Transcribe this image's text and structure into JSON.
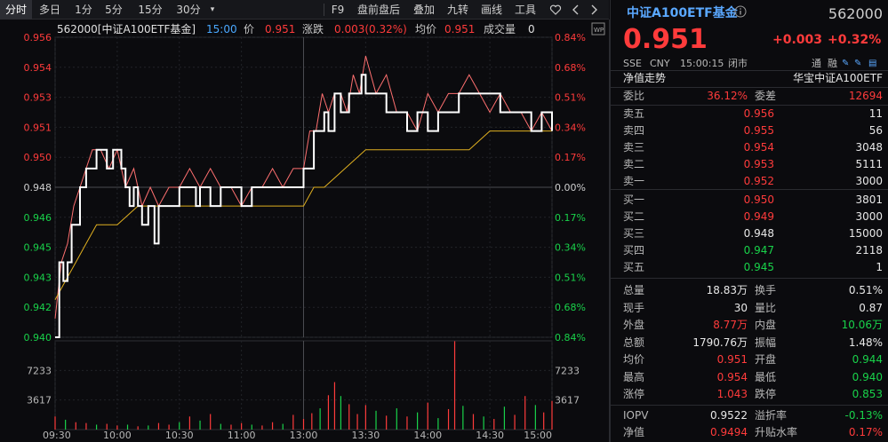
{
  "toolbar": {
    "tabs": [
      "分时",
      "多日",
      "1分",
      "5分",
      "15分",
      "30分"
    ],
    "more": "▾",
    "tools": [
      "F9",
      "盘前盘后",
      "叠加",
      "九转",
      "画线",
      "工具"
    ],
    "fav_icon": "heart-outline-icon",
    "back_icon": "chevron-left-icon",
    "fwd_icon": "chevron-right-icon"
  },
  "info_bar": {
    "code_name": "562000[中证A100ETF基金]",
    "time": "15:00",
    "price_label": "价",
    "price": "0.951",
    "change_label": "涨跌",
    "change": "0.003(0.32%)",
    "avg_label": "均价",
    "avg": "0.951",
    "volume_label": "成交量",
    "volume": "0"
  },
  "colors": {
    "up": "#ff3b3b",
    "down": "#19d24a",
    "price_line": "#ffffff",
    "avg_line": "#e0b020",
    "iopv_line": "#ff7070",
    "accent_blue": "#4a8cff"
  },
  "chart_data": {
    "type": "line",
    "x_ticks": [
      "09:30",
      "10:00",
      "10:30",
      "11:00",
      "13:00",
      "13:30",
      "14:00",
      "14:30",
      "15:00"
    ],
    "y_left_ticks": [
      "0.956",
      "0.954",
      "0.953",
      "0.951",
      "0.950",
      "0.948",
      "0.946",
      "0.945",
      "0.943",
      "0.942",
      "0.940"
    ],
    "y_right_ticks": [
      "0.84%",
      "0.68%",
      "0.51%",
      "0.34%",
      "0.17%",
      "0.00%",
      "0.17%",
      "0.34%",
      "0.51%",
      "0.68%",
      "0.84%"
    ],
    "ylim": [
      0.94,
      0.956
    ],
    "prev_close": 0.948,
    "volume_ticks": [
      "7233",
      "3617"
    ],
    "volume_max": 10850,
    "series": [
      {
        "name": "价",
        "x": [
          0,
          2,
          4,
          6,
          8,
          10,
          12,
          15,
          18,
          20,
          22,
          25,
          28,
          30,
          32,
          34,
          36,
          38,
          40,
          42,
          45,
          48,
          50,
          52,
          55,
          58,
          60,
          62,
          65,
          68,
          70,
          72,
          75,
          80,
          85,
          90,
          95,
          100,
          105,
          110,
          115,
          120,
          122,
          125,
          128,
          130,
          132,
          135,
          138,
          140,
          142,
          145,
          148,
          150,
          155,
          160,
          165,
          170,
          175,
          180,
          185,
          190,
          195,
          200,
          205,
          210,
          215,
          220,
          225,
          230,
          235,
          240
        ],
        "y": [
          0.94,
          0.944,
          0.943,
          0.944,
          0.946,
          0.946,
          0.948,
          0.949,
          0.949,
          0.95,
          0.95,
          0.949,
          0.95,
          0.95,
          0.949,
          0.948,
          0.947,
          0.948,
          0.947,
          0.946,
          0.947,
          0.945,
          0.947,
          0.947,
          0.947,
          0.947,
          0.948,
          0.948,
          0.948,
          0.947,
          0.948,
          0.948,
          0.947,
          0.948,
          0.948,
          0.947,
          0.948,
          0.948,
          0.948,
          0.948,
          0.948,
          0.949,
          0.949,
          0.951,
          0.951,
          0.952,
          0.951,
          0.953,
          0.952,
          0.952,
          0.953,
          0.953,
          0.954,
          0.953,
          0.953,
          0.952,
          0.952,
          0.951,
          0.952,
          0.951,
          0.952,
          0.952,
          0.953,
          0.953,
          0.953,
          0.953,
          0.952,
          0.952,
          0.952,
          0.951,
          0.952,
          0.951
        ]
      },
      {
        "name": "均价",
        "x": [
          0,
          5,
          10,
          15,
          20,
          30,
          40,
          50,
          60,
          70,
          80,
          90,
          100,
          110,
          120,
          125,
          130,
          140,
          150,
          160,
          170,
          180,
          190,
          200,
          210,
          220,
          230,
          240
        ],
        "y": [
          0.942,
          0.943,
          0.944,
          0.945,
          0.946,
          0.946,
          0.947,
          0.947,
          0.947,
          0.947,
          0.947,
          0.947,
          0.947,
          0.947,
          0.947,
          0.948,
          0.948,
          0.949,
          0.95,
          0.95,
          0.95,
          0.95,
          0.95,
          0.95,
          0.951,
          0.951,
          0.951,
          0.951
        ]
      },
      {
        "name": "IOPV",
        "x": [
          0,
          3,
          6,
          9,
          12,
          15,
          18,
          22,
          26,
          30,
          34,
          38,
          42,
          46,
          50,
          55,
          60,
          65,
          70,
          75,
          80,
          85,
          90,
          95,
          100,
          105,
          110,
          115,
          120,
          123,
          126,
          129,
          132,
          135,
          138,
          141,
          144,
          147,
          150,
          155,
          160,
          165,
          170,
          175,
          180,
          185,
          190,
          195,
          200,
          205,
          210,
          215,
          220,
          225,
          230,
          235,
          240
        ],
        "y": [
          0.941,
          0.944,
          0.945,
          0.947,
          0.948,
          0.949,
          0.95,
          0.95,
          0.949,
          0.95,
          0.948,
          0.949,
          0.947,
          0.948,
          0.947,
          0.948,
          0.948,
          0.949,
          0.948,
          0.949,
          0.948,
          0.948,
          0.947,
          0.948,
          0.948,
          0.949,
          0.948,
          0.949,
          0.949,
          0.951,
          0.951,
          0.953,
          0.952,
          0.953,
          0.953,
          0.952,
          0.954,
          0.953,
          0.955,
          0.953,
          0.954,
          0.952,
          0.952,
          0.951,
          0.953,
          0.952,
          0.953,
          0.953,
          0.954,
          0.953,
          0.952,
          0.953,
          0.952,
          0.952,
          0.951,
          0.952,
          0.951
        ]
      }
    ],
    "volume": [
      {
        "x": 0,
        "v": 1600,
        "c": "up"
      },
      {
        "x": 5,
        "v": 1200,
        "c": "down"
      },
      {
        "x": 10,
        "v": 900,
        "c": "up"
      },
      {
        "x": 15,
        "v": 800,
        "c": "up"
      },
      {
        "x": 20,
        "v": 600,
        "c": "down"
      },
      {
        "x": 25,
        "v": 700,
        "c": "up"
      },
      {
        "x": 30,
        "v": 500,
        "c": "up"
      },
      {
        "x": 35,
        "v": 600,
        "c": "down"
      },
      {
        "x": 40,
        "v": 400,
        "c": "up"
      },
      {
        "x": 45,
        "v": 500,
        "c": "down"
      },
      {
        "x": 50,
        "v": 800,
        "c": "up"
      },
      {
        "x": 55,
        "v": 600,
        "c": "up"
      },
      {
        "x": 60,
        "v": 900,
        "c": "down"
      },
      {
        "x": 65,
        "v": 1600,
        "c": "up"
      },
      {
        "x": 70,
        "v": 1100,
        "c": "down"
      },
      {
        "x": 75,
        "v": 1900,
        "c": "up"
      },
      {
        "x": 80,
        "v": 700,
        "c": "down"
      },
      {
        "x": 85,
        "v": 600,
        "c": "up"
      },
      {
        "x": 90,
        "v": 800,
        "c": "up"
      },
      {
        "x": 95,
        "v": 600,
        "c": "down"
      },
      {
        "x": 100,
        "v": 500,
        "c": "up"
      },
      {
        "x": 105,
        "v": 900,
        "c": "up"
      },
      {
        "x": 110,
        "v": 700,
        "c": "down"
      },
      {
        "x": 115,
        "v": 1800,
        "c": "up"
      },
      {
        "x": 120,
        "v": 1300,
        "c": "up"
      },
      {
        "x": 124,
        "v": 2000,
        "c": "up"
      },
      {
        "x": 128,
        "v": 2600,
        "c": "down"
      },
      {
        "x": 132,
        "v": 4200,
        "c": "up"
      },
      {
        "x": 135,
        "v": 5800,
        "c": "up"
      },
      {
        "x": 138,
        "v": 4100,
        "c": "down"
      },
      {
        "x": 142,
        "v": 3100,
        "c": "up"
      },
      {
        "x": 146,
        "v": 1900,
        "c": "up"
      },
      {
        "x": 150,
        "v": 3000,
        "c": "up"
      },
      {
        "x": 155,
        "v": 2300,
        "c": "down"
      },
      {
        "x": 160,
        "v": 1700,
        "c": "up"
      },
      {
        "x": 165,
        "v": 2600,
        "c": "down"
      },
      {
        "x": 170,
        "v": 1600,
        "c": "up"
      },
      {
        "x": 175,
        "v": 2100,
        "c": "down"
      },
      {
        "x": 180,
        "v": 3300,
        "c": "up"
      },
      {
        "x": 185,
        "v": 1400,
        "c": "down"
      },
      {
        "x": 190,
        "v": 2500,
        "c": "up"
      },
      {
        "x": 193,
        "v": 10800,
        "c": "up"
      },
      {
        "x": 197,
        "v": 2900,
        "c": "down"
      },
      {
        "x": 202,
        "v": 1900,
        "c": "up"
      },
      {
        "x": 207,
        "v": 1600,
        "c": "down"
      },
      {
        "x": 212,
        "v": 1300,
        "c": "up"
      },
      {
        "x": 217,
        "v": 2800,
        "c": "down"
      },
      {
        "x": 222,
        "v": 1800,
        "c": "up"
      },
      {
        "x": 227,
        "v": 4100,
        "c": "up"
      },
      {
        "x": 232,
        "v": 3000,
        "c": "down"
      },
      {
        "x": 236,
        "v": 2100,
        "c": "up"
      },
      {
        "x": 240,
        "v": 3500,
        "c": "up"
      }
    ]
  },
  "quote": {
    "name": "中证A100ETF基金",
    "info_icon": "info-circle-icon",
    "code": "562000",
    "price": "0.951",
    "change": "+0.003",
    "change_pct": "+0.32%",
    "exchange": "SSE",
    "currency": "CNY",
    "time": "15:00:15",
    "status": "闭市",
    "tags": [
      "通",
      "融"
    ],
    "nav_trend_label": "净值走势",
    "fund_name": "华宝中证A100ETF",
    "ratio_label": "委比",
    "ratio": "36.12%",
    "diff_label": "委差",
    "diff": "12694",
    "asks": [
      {
        "label": "卖五",
        "price": "0.956",
        "vol": "11"
      },
      {
        "label": "卖四",
        "price": "0.955",
        "vol": "56"
      },
      {
        "label": "卖三",
        "price": "0.954",
        "vol": "3048"
      },
      {
        "label": "卖二",
        "price": "0.953",
        "vol": "5111"
      },
      {
        "label": "卖一",
        "price": "0.952",
        "vol": "3000"
      }
    ],
    "bids": [
      {
        "label": "买一",
        "price": "0.950",
        "vol": "3801",
        "c": "red"
      },
      {
        "label": "买二",
        "price": "0.949",
        "vol": "3000",
        "c": "red"
      },
      {
        "label": "买三",
        "price": "0.948",
        "vol": "15000",
        "c": "white"
      },
      {
        "label": "买四",
        "price": "0.947",
        "vol": "2118",
        "c": "green"
      },
      {
        "label": "买五",
        "price": "0.945",
        "vol": "1",
        "c": "green"
      }
    ],
    "stats": [
      {
        "l1": "总量",
        "v1": "18.83万",
        "c1": "white",
        "l2": "换手",
        "v2": "0.51%",
        "c2": "white"
      },
      {
        "l1": "现手",
        "v1": "30",
        "c1": "white",
        "l2": "量比",
        "v2": "0.87",
        "c2": "white"
      },
      {
        "l1": "外盘",
        "v1": "8.77万",
        "c1": "red",
        "l2": "内盘",
        "v2": "10.06万",
        "c2": "green"
      },
      {
        "l1": "总额",
        "v1": "1790.76万",
        "c1": "white",
        "l2": "振幅",
        "v2": "1.48%",
        "c2": "white"
      },
      {
        "l1": "均价",
        "v1": "0.951",
        "c1": "red",
        "l2": "开盘",
        "v2": "0.944",
        "c2": "green"
      },
      {
        "l1": "最高",
        "v1": "0.954",
        "c1": "red",
        "l2": "最低",
        "v2": "0.940",
        "c2": "green"
      },
      {
        "l1": "涨停",
        "v1": "1.043",
        "c1": "red",
        "l2": "跌停",
        "v2": "0.853",
        "c2": "green"
      }
    ],
    "extras": [
      {
        "l1": "IOPV",
        "v1": "0.9522",
        "c1": "white",
        "l2": "溢折率",
        "v2": "-0.13%",
        "c2": "green"
      },
      {
        "l1": "净值",
        "v1": "0.9494",
        "c1": "red",
        "l2": "升贴水率",
        "v2": "0.17%",
        "c2": "red"
      }
    ]
  }
}
